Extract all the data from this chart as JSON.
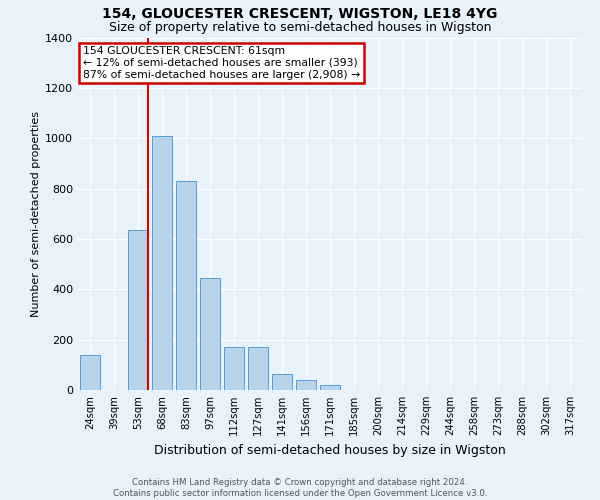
{
  "title": "154, GLOUCESTER CRESCENT, WIGSTON, LE18 4YG",
  "subtitle": "Size of property relative to semi-detached houses in Wigston",
  "xlabel": "Distribution of semi-detached houses by size in Wigston",
  "ylabel": "Number of semi-detached properties",
  "bar_labels": [
    "24sqm",
    "39sqm",
    "53sqm",
    "68sqm",
    "83sqm",
    "97sqm",
    "112sqm",
    "127sqm",
    "141sqm",
    "156sqm",
    "171sqm",
    "185sqm",
    "200sqm",
    "214sqm",
    "229sqm",
    "244sqm",
    "258sqm",
    "273sqm",
    "288sqm",
    "302sqm",
    "317sqm"
  ],
  "bar_values": [
    140,
    0,
    635,
    1010,
    830,
    445,
    170,
    170,
    65,
    40,
    20,
    0,
    0,
    0,
    0,
    0,
    0,
    0,
    0,
    0,
    0
  ],
  "bar_color": "#b8d4ea",
  "bar_edge_color": "#5b9bd5",
  "ref_line_x": 2.43,
  "ref_line_label": "154 GLOUCESTER CRESCENT: 61sqm",
  "annotation_line1": "← 12% of semi-detached houses are smaller (393)",
  "annotation_line2": "87% of semi-detached houses are larger (2,908) →",
  "annotation_box_color": "#cc0000",
  "ylim": [
    0,
    1400
  ],
  "yticks": [
    0,
    200,
    400,
    600,
    800,
    1000,
    1200,
    1400
  ],
  "footer_line1": "Contains HM Land Registry data © Crown copyright and database right 2024.",
  "footer_line2": "Contains public sector information licensed under the Open Government Licence v3.0.",
  "background_color": "#e8f2fb",
  "plot_bg_color": "#e8f2fb",
  "grid_color": "#ffffff",
  "title_fontsize": 10,
  "subtitle_fontsize": 9,
  "xlabel_fontsize": 9,
  "ylabel_fontsize": 8,
  "ref_line_color": "#cc0000"
}
